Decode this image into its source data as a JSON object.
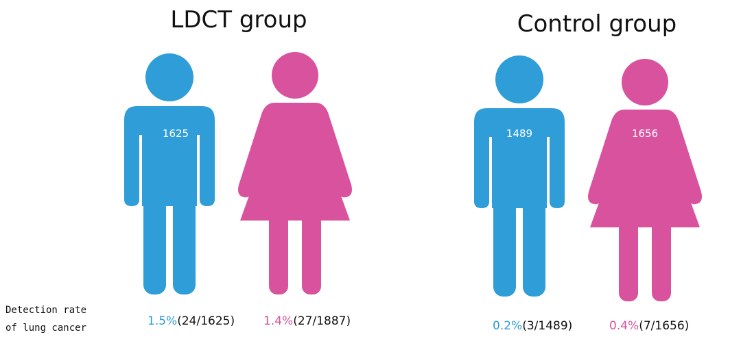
{
  "row_label": [
    "Detection rate",
    "of lung cancer"
  ],
  "groups": [
    {
      "title": "LDCT group",
      "figures": [
        {
          "count": "1625",
          "rate": "1.5%",
          "ratio": "(24/1625)"
        },
        {
          "rate": "1.4%",
          "ratio": "(27/1887)"
        }
      ]
    },
    {
      "title": "Control group",
      "figures": [
        {
          "count": "1489",
          "rate": "0.2%",
          "ratio": "(3/1489)"
        },
        {
          "count": "1656",
          "rate": "0.4%",
          "ratio": "(7/1656)"
        }
      ]
    }
  ]
}
